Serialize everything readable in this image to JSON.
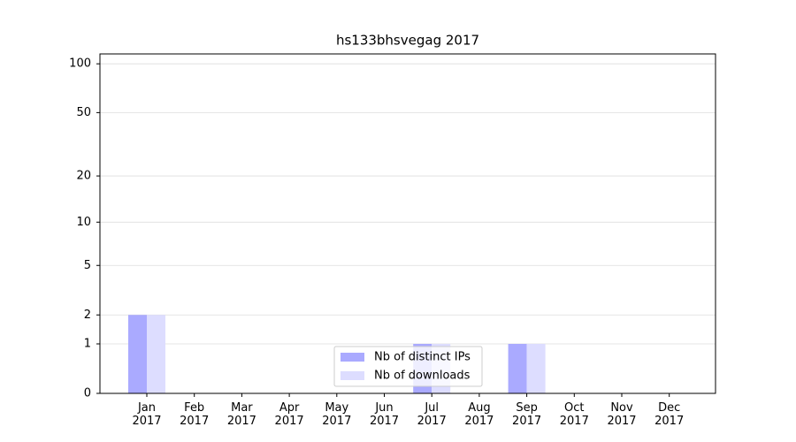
{
  "chart_data": {
    "type": "bar",
    "title": "hs133bhsvegag 2017",
    "categories": [
      "Jan\n2017",
      "Feb\n2017",
      "Mar\n2017",
      "Apr\n2017",
      "May\n2017",
      "Jun\n2017",
      "Jul\n2017",
      "Aug\n2017",
      "Sep\n2017",
      "Oct\n2017",
      "Nov\n2017",
      "Dec\n2017"
    ],
    "series": [
      {
        "name": "Nb of distinct IPs",
        "color": "#aaaaff",
        "values": [
          2,
          0,
          0,
          0,
          0,
          0,
          1,
          0,
          1,
          0,
          0,
          0
        ]
      },
      {
        "name": "Nb of downloads",
        "color": "#ddddff",
        "values": [
          2,
          0,
          0,
          0,
          0,
          0,
          1,
          0,
          1,
          0,
          0,
          0
        ]
      }
    ],
    "yscale": "symlog",
    "ylim": [
      0,
      115
    ],
    "yticks": [
      0,
      1,
      2,
      5,
      10,
      20,
      50,
      100
    ],
    "grid": true,
    "legend": "lower center"
  }
}
